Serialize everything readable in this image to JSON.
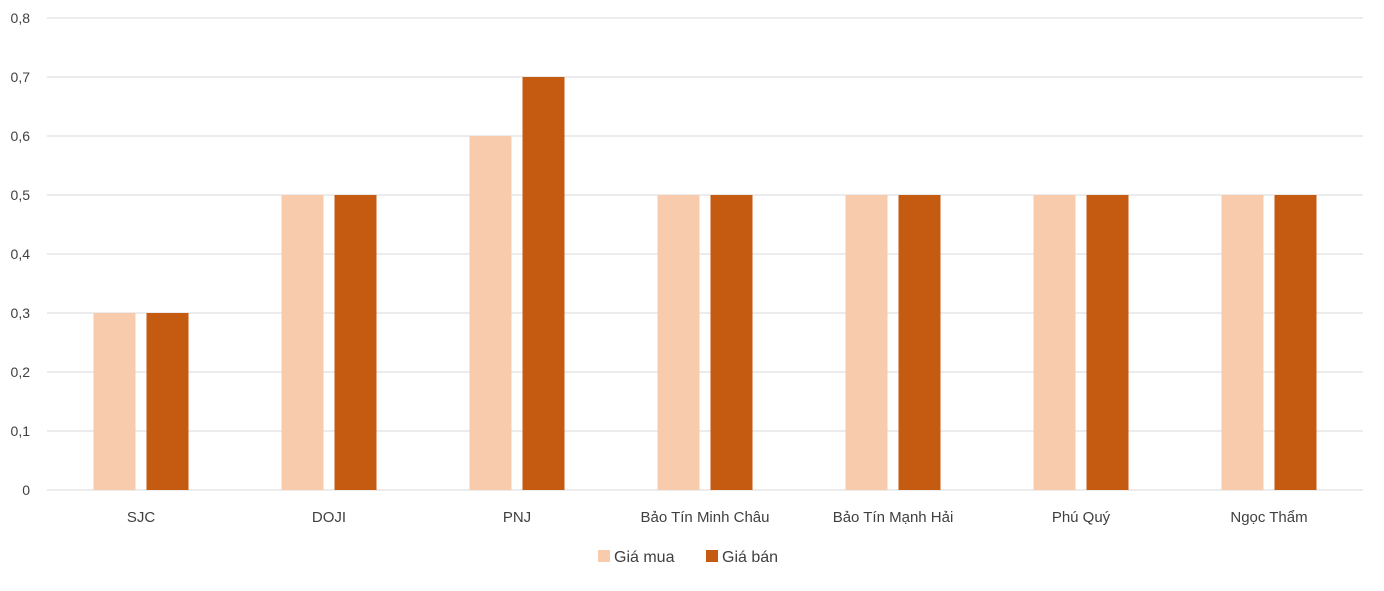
{
  "chart_data": {
    "type": "bar",
    "categories": [
      "SJC",
      "DOJI",
      "PNJ",
      "Bảo Tín Minh Châu",
      "Bảo Tín Mạnh Hải",
      "Phú Quý",
      "Ngọc Thẩm"
    ],
    "series": [
      {
        "name": "Giá mua",
        "color": "#F8CBAD",
        "values": [
          0.3,
          0.5,
          0.6,
          0.5,
          0.5,
          0.5,
          0.5
        ]
      },
      {
        "name": "Giá bán",
        "color": "#C55A11",
        "values": [
          0.3,
          0.5,
          0.7,
          0.5,
          0.5,
          0.5,
          0.5
        ]
      }
    ],
    "ylim": [
      0,
      0.8
    ],
    "yticks": [
      "0",
      "0,1",
      "0,2",
      "0,3",
      "0,4",
      "0,5",
      "0,6",
      "0,7",
      "0,8"
    ],
    "grid": true,
    "legend": "bottom",
    "title": "",
    "xlabel": "",
    "ylabel": ""
  }
}
